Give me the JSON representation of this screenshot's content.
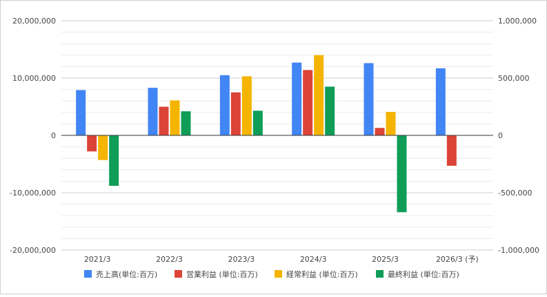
{
  "chart_data": {
    "type": "bar",
    "categories": [
      "2021/3",
      "2022/3",
      "2023/3",
      "2024/3",
      "2025/3",
      "2026/3 (予)"
    ],
    "series": [
      {
        "name": "売上高(単位:百万)",
        "color": "#4285F4",
        "values": [
          7900000,
          8300000,
          10500000,
          12700000,
          12600000,
          11700000
        ]
      },
      {
        "name": "営業利益 (単位:百万)",
        "color": "#DB4437",
        "values": [
          -2800000,
          5000000,
          7500000,
          11400000,
          1300000,
          -5300000
        ]
      },
      {
        "name": "経常利益 (単位:百万)",
        "color": "#F4B400",
        "values": [
          -4300000,
          6100000,
          10300000,
          14000000,
          4100000,
          null
        ]
      },
      {
        "name": "最終利益 (単位:百万)",
        "color": "#0F9D58",
        "values": [
          -8800000,
          4200000,
          4300000,
          8500000,
          -13400000,
          null
        ]
      }
    ],
    "y_axis_left": {
      "range": [
        -20000000,
        20000000
      ],
      "ticks": [
        "20,000,000",
        "10,000,000",
        "0",
        "-10,000,000",
        "-20,000,000"
      ]
    },
    "y_axis_right": {
      "range": [
        -1000000,
        1000000
      ],
      "ticks": [
        "1,000,000",
        "500,000",
        "0",
        "-500,000",
        "-1,000,000"
      ]
    },
    "grid": true,
    "legend_position": "bottom"
  }
}
